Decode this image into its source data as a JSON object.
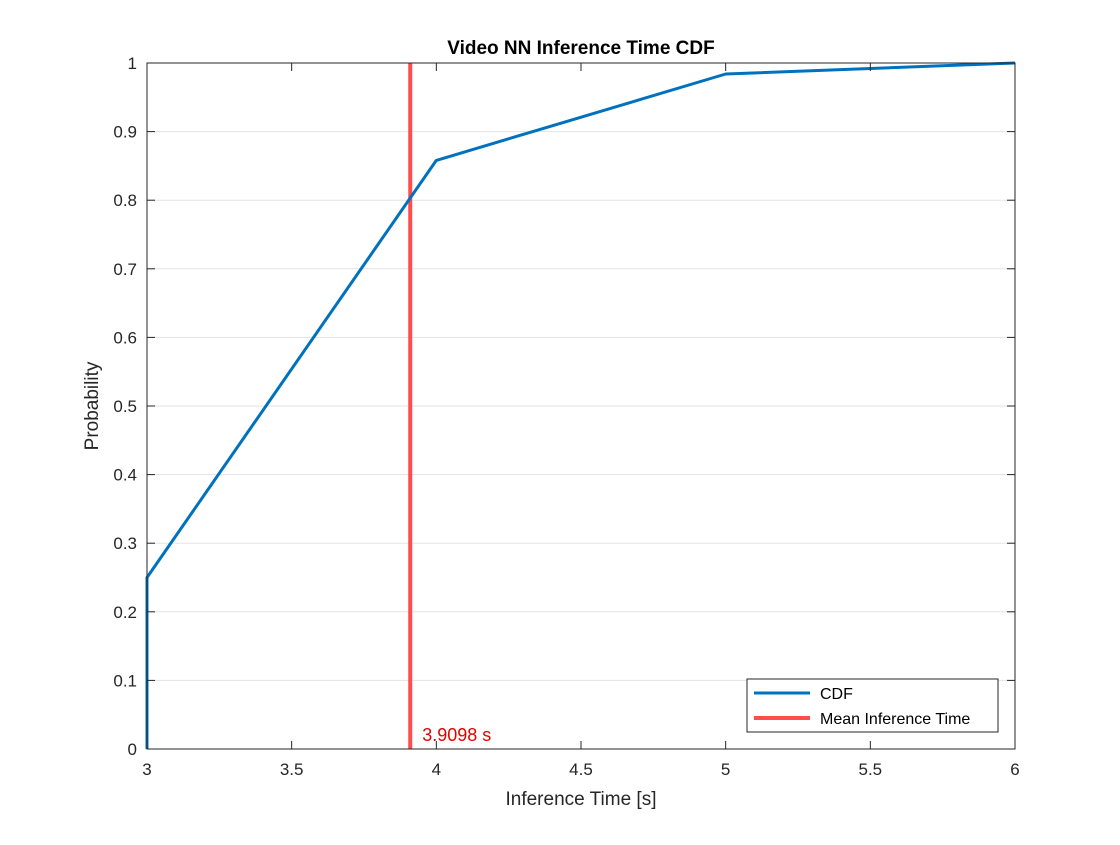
{
  "chart_data": {
    "type": "line",
    "title": "Video NN Inference Time CDF",
    "xlabel": "Inference Time [s]",
    "ylabel": "Probability",
    "xlim": [
      3,
      6
    ],
    "ylim": [
      0,
      1
    ],
    "xticks": [
      "3",
      "3.5",
      "4",
      "4.5",
      "5",
      "5.5",
      "6"
    ],
    "yticks": [
      "0",
      "0.1",
      "0.2",
      "0.3",
      "0.4",
      "0.5",
      "0.6",
      "0.7",
      "0.8",
      "0.9",
      "1"
    ],
    "grid": "y",
    "legend_position": "bottom-right",
    "series": [
      {
        "name": "CDF",
        "color": "#0072BD",
        "x": [
          3,
          3,
          4,
          5,
          6
        ],
        "y": [
          0,
          0.25,
          0.858,
          0.984,
          1.0
        ]
      }
    ],
    "vline": {
      "name": "Mean Inference Time",
      "x": 3.9098,
      "color": "#FF4C4C"
    },
    "annotation": {
      "text": "3.9098 s",
      "x": 3.9098,
      "y": 0,
      "color": "#E60000"
    }
  }
}
